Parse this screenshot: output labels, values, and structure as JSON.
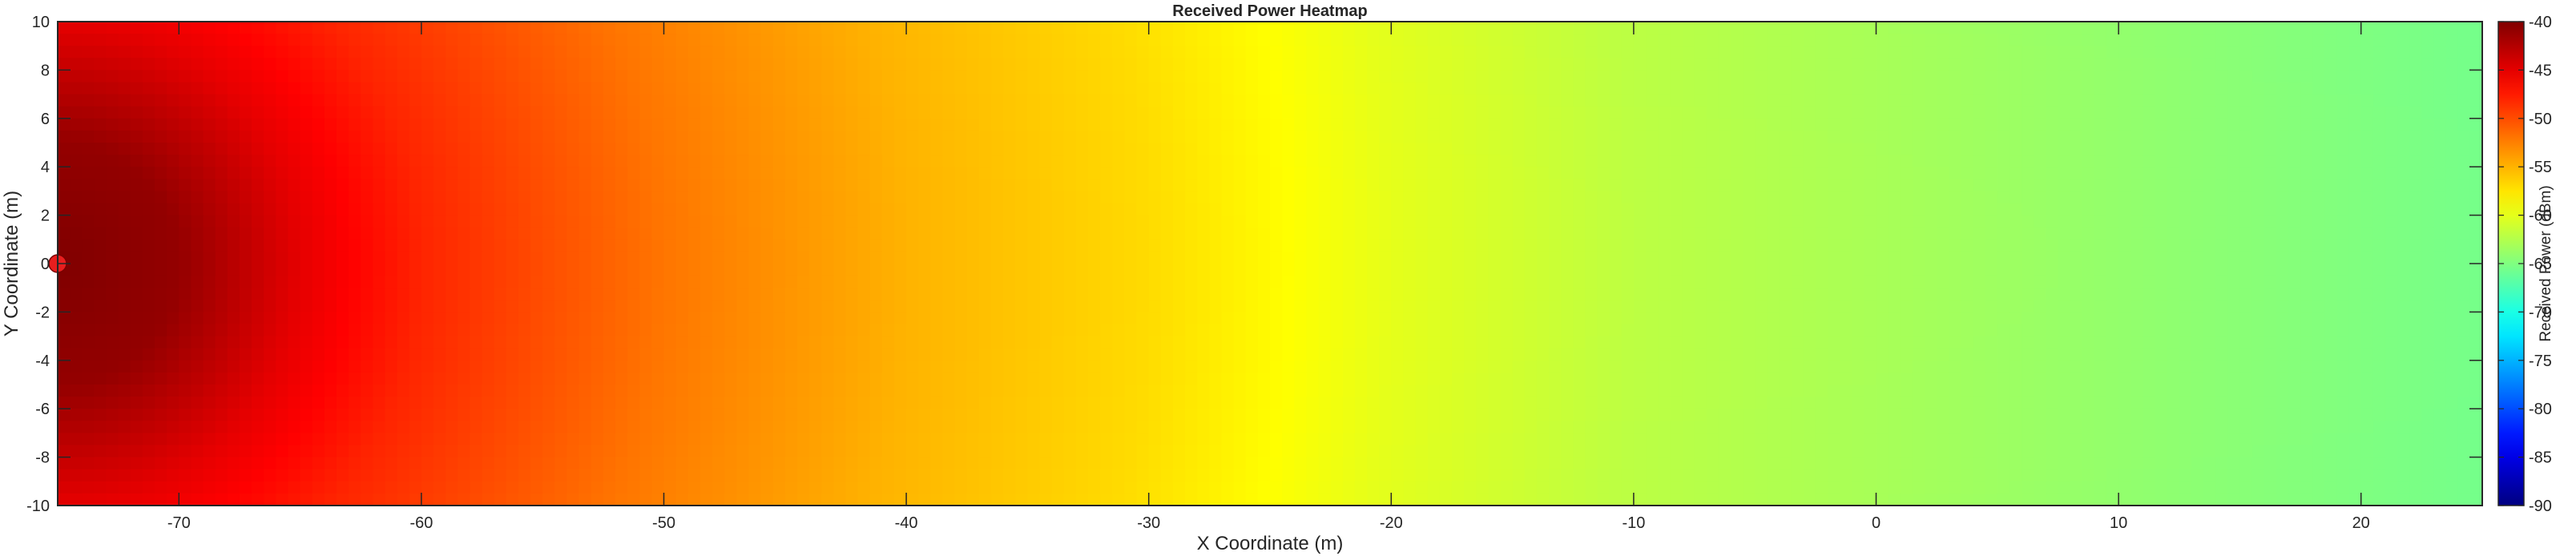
{
  "chart_data": {
    "type": "heatmap",
    "title": "Received Power Heatmap",
    "xlabel": "X Coordinate (m)",
    "ylabel": "Y Coordinate (m)",
    "xlim": [
      -75,
      25
    ],
    "ylim": [
      -10,
      10
    ],
    "x_ticks": [
      "-70",
      "-60",
      "-50",
      "-40",
      "-30",
      "-20",
      "-10",
      "0",
      "10",
      "20"
    ],
    "y_ticks": [
      "10",
      "8",
      "6",
      "4",
      "2",
      "0",
      "-2",
      "-4",
      "-6",
      "-8",
      "-10"
    ],
    "colorbar": {
      "label": "Received Power (dBm)",
      "range": [
        -90,
        -40
      ],
      "ticks": [
        "-40",
        "-45",
        "-50",
        "-55",
        "-60",
        "-65",
        "-70",
        "-75",
        "-80",
        "-85",
        "-90"
      ],
      "colormap": "jet"
    },
    "transmitter": {
      "x": -75,
      "y": 0,
      "color": "#e81e1e"
    },
    "field_samples": {
      "x": [
        -75,
        -70,
        -65,
        -60,
        -55,
        -50,
        -45,
        -40,
        -35,
        -30,
        -25,
        -20,
        -15,
        -10,
        -5,
        0,
        5,
        10,
        15,
        20,
        25
      ],
      "power_dbm_at_y0": [
        -40,
        -41,
        -45,
        -48,
        -50,
        -52,
        -53.5,
        -55,
        -56,
        -57,
        -58.5,
        -60,
        -61,
        -62,
        -62.5,
        -63,
        -63.5,
        -64,
        -64.5,
        -65,
        -65.5
      ]
    },
    "grid": false
  }
}
